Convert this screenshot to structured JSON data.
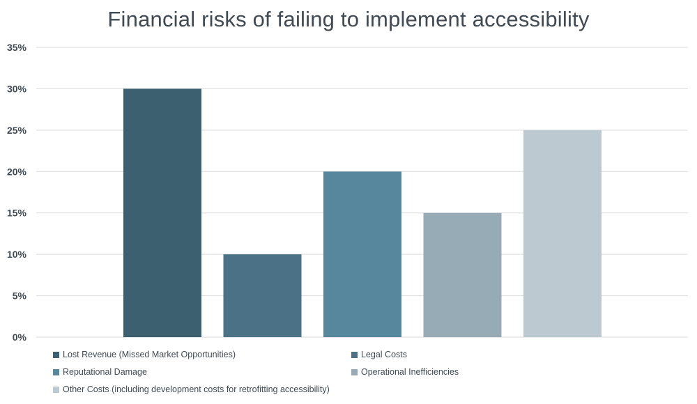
{
  "chart_data": {
    "type": "bar",
    "title": "Financial risks of failing to implement accessibility",
    "xlabel": "",
    "ylabel": "",
    "ylim": [
      0,
      35
    ],
    "yticks": [
      "0%",
      "5%",
      "10%",
      "15%",
      "20%",
      "25%",
      "30%",
      "35%"
    ],
    "grid": true,
    "legend_position": "bottom",
    "series": [
      {
        "name": "Lost Revenue (Missed Market Opportunities)",
        "value": 30,
        "color": "#3d6070"
      },
      {
        "name": "Legal Costs",
        "value": 10,
        "color": "#4a7185"
      },
      {
        "name": "Reputational Damage",
        "value": 20,
        "color": "#56879c"
      },
      {
        "name": "Operational Inefficiencies",
        "value": 15,
        "color": "#97abb7"
      },
      {
        "name": "Other Costs (including development costs for retrofitting accessibility)",
        "value": 25,
        "color": "#bcc9d1"
      }
    ]
  }
}
